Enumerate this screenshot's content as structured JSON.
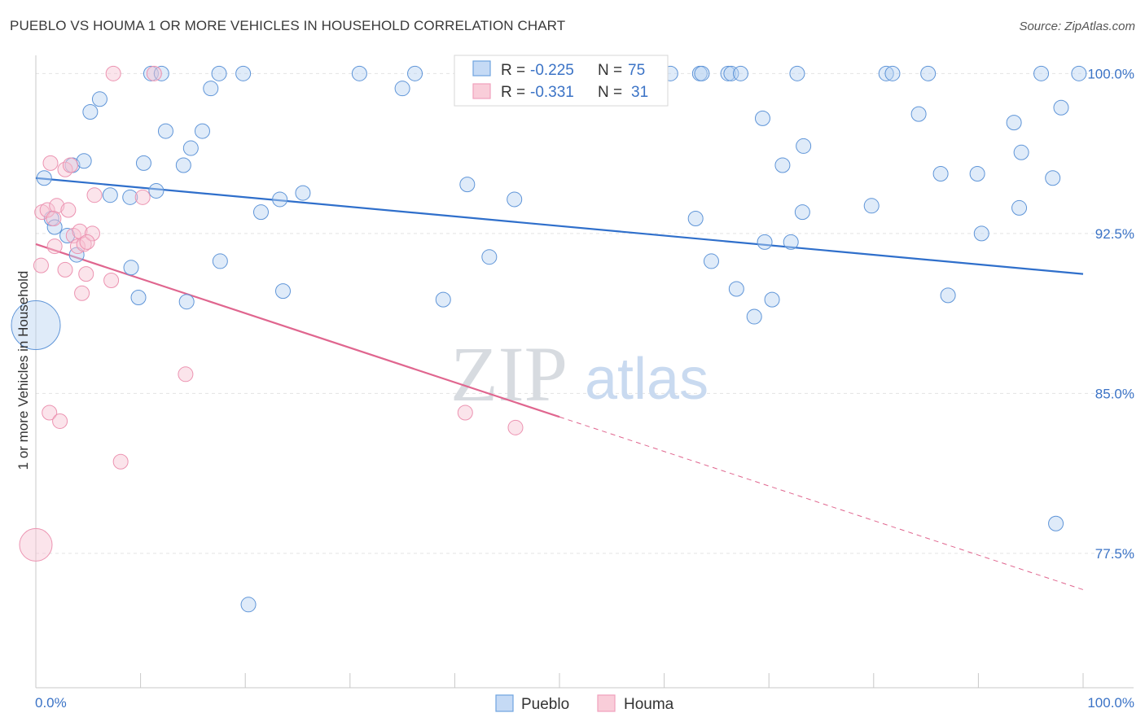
{
  "title": "PUEBLO VS HOUMA 1 OR MORE VEHICLES IN HOUSEHOLD CORRELATION CHART",
  "source": "Source: ZipAtlas.com",
  "watermark": {
    "zip": "ZIP",
    "atlas": "atlas"
  },
  "colors": {
    "pueblo": "#6fa3e0",
    "houma": "#f0a0bc",
    "pueblo_line": "#2f6fcb",
    "houma_line": "#e0668f",
    "tick": "#3b73c6"
  },
  "legend": {
    "rows": [
      {
        "r_label": "R =",
        "r_value": "-0.225",
        "n_label": "N =",
        "n_value": "75"
      },
      {
        "r_label": "R =",
        "r_value": "-0.331",
        "n_label": "N =",
        "n_value": "31"
      }
    ]
  },
  "bottom_legend": {
    "pueblo": "Pueblo",
    "houma": "Houma"
  },
  "chart_data": {
    "type": "scatter",
    "title": "PUEBLO VS HOUMA 1 OR MORE VEHICLES IN HOUSEHOLD CORRELATION CHART",
    "xlabel": "",
    "ylabel": "1 or more Vehicles in Household",
    "xlim": [
      0,
      100
    ],
    "ylim": [
      71.2,
      100.7
    ],
    "x_tick_labels": [
      "0.0%",
      "100.0%"
    ],
    "y_ticks": [
      100.0,
      92.5,
      85.0,
      77.5
    ],
    "y_tick_labels": [
      "100.0%",
      "92.5%",
      "85.0%",
      "77.5%"
    ],
    "series": [
      {
        "name": "Pueblo",
        "r": -0.225,
        "n": 75,
        "trend": {
          "x": [
            0,
            100
          ],
          "y": [
            95.1,
            90.6
          ]
        },
        "points": [
          [
            0.0,
            88.2,
            30
          ],
          [
            0.8,
            95.1,
            9
          ],
          [
            1.5,
            93.2,
            9
          ],
          [
            1.8,
            92.8,
            9
          ],
          [
            3.0,
            92.4,
            9
          ],
          [
            3.5,
            95.7,
            9
          ],
          [
            3.9,
            91.5,
            9
          ],
          [
            4.6,
            95.9,
            9
          ],
          [
            5.2,
            98.2,
            9
          ],
          [
            6.1,
            98.8,
            9
          ],
          [
            7.1,
            94.3,
            9
          ],
          [
            9.0,
            94.2,
            9
          ],
          [
            9.1,
            90.9,
            9
          ],
          [
            9.8,
            89.5,
            9
          ],
          [
            10.3,
            95.8,
            9
          ],
          [
            11.0,
            100.0,
            9
          ],
          [
            11.5,
            94.5,
            9
          ],
          [
            12.0,
            100.0,
            9
          ],
          [
            12.4,
            97.3,
            9
          ],
          [
            14.1,
            95.7,
            9
          ],
          [
            14.4,
            89.3,
            9
          ],
          [
            14.8,
            96.5,
            9
          ],
          [
            15.9,
            97.3,
            9
          ],
          [
            16.7,
            99.3,
            9
          ],
          [
            17.5,
            100.0,
            9
          ],
          [
            17.6,
            91.2,
            9
          ],
          [
            19.8,
            100.0,
            9
          ],
          [
            20.3,
            75.1,
            9
          ],
          [
            21.5,
            93.5,
            9
          ],
          [
            23.3,
            94.1,
            9
          ],
          [
            23.6,
            89.8,
            9
          ],
          [
            25.5,
            94.4,
            9
          ],
          [
            30.9,
            100.0,
            9
          ],
          [
            35.0,
            99.3,
            9
          ],
          [
            36.2,
            100.0,
            9
          ],
          [
            38.9,
            89.4,
            9
          ],
          [
            41.2,
            94.8,
            9
          ],
          [
            43.3,
            91.4,
            9
          ],
          [
            45.7,
            94.1,
            9
          ],
          [
            47.4,
            100.0,
            9
          ],
          [
            60.6,
            100.0,
            9
          ],
          [
            63.4,
            100.0,
            9
          ],
          [
            63.6,
            100.0,
            9
          ],
          [
            66.1,
            100.0,
            9
          ],
          [
            66.4,
            100.0,
            9
          ],
          [
            67.3,
            100.0,
            9
          ],
          [
            63.0,
            93.2,
            9
          ],
          [
            64.5,
            91.2,
            9
          ],
          [
            66.9,
            89.9,
            9
          ],
          [
            68.6,
            88.6,
            9
          ],
          [
            69.4,
            97.9,
            9
          ],
          [
            69.6,
            92.1,
            9
          ],
          [
            70.3,
            89.4,
            9
          ],
          [
            71.3,
            95.7,
            9
          ],
          [
            72.1,
            92.1,
            9
          ],
          [
            72.7,
            100.0,
            9
          ],
          [
            73.3,
            96.6,
            9
          ],
          [
            73.2,
            93.5,
            9
          ],
          [
            79.8,
            93.8,
            9
          ],
          [
            81.2,
            100.0,
            9
          ],
          [
            81.8,
            100.0,
            9
          ],
          [
            84.3,
            98.1,
            9
          ],
          [
            85.2,
            100.0,
            9
          ],
          [
            86.4,
            95.3,
            9
          ],
          [
            87.1,
            89.6,
            9
          ],
          [
            89.9,
            95.3,
            9
          ],
          [
            90.3,
            92.5,
            9
          ],
          [
            93.4,
            97.7,
            9
          ],
          [
            93.9,
            93.7,
            9
          ],
          [
            94.1,
            96.3,
            9
          ],
          [
            96.0,
            100.0,
            9
          ],
          [
            97.4,
            78.9,
            9
          ],
          [
            97.1,
            95.1,
            9
          ],
          [
            97.9,
            98.4,
            9
          ],
          [
            99.6,
            100.0,
            9
          ]
        ]
      },
      {
        "name": "Houma",
        "r": -0.331,
        "n": 31,
        "trend": {
          "x": [
            0,
            50
          ],
          "y": [
            92.0,
            83.9
          ]
        },
        "trend_dashed": {
          "x": [
            50,
            100
          ],
          "y": [
            83.9,
            75.8
          ]
        },
        "points": [
          [
            0.0,
            77.9,
            20
          ],
          [
            0.5,
            91.0,
            9
          ],
          [
            0.6,
            93.5,
            9
          ],
          [
            1.1,
            93.6,
            9
          ],
          [
            1.3,
            84.1,
            9
          ],
          [
            1.4,
            95.8,
            9
          ],
          [
            1.8,
            91.9,
            9
          ],
          [
            2.0,
            93.8,
            9
          ],
          [
            2.3,
            83.7,
            9
          ],
          [
            2.8,
            95.5,
            9
          ],
          [
            2.8,
            90.8,
            9
          ],
          [
            3.1,
            93.6,
            9
          ],
          [
            3.3,
            95.7,
            9
          ],
          [
            3.6,
            92.4,
            9
          ],
          [
            4.0,
            91.9,
            9
          ],
          [
            4.2,
            92.6,
            9
          ],
          [
            4.4,
            89.7,
            9
          ],
          [
            4.6,
            92.0,
            9
          ],
          [
            4.8,
            90.6,
            9
          ],
          [
            5.4,
            92.5,
            9
          ],
          [
            5.6,
            94.3,
            9
          ],
          [
            7.2,
            90.3,
            9
          ],
          [
            7.4,
            100.0,
            9
          ],
          [
            8.1,
            81.8,
            9
          ],
          [
            10.2,
            94.2,
            9
          ],
          [
            11.3,
            100.0,
            9
          ],
          [
            14.3,
            85.9,
            9
          ],
          [
            41.0,
            84.1,
            9
          ],
          [
            45.8,
            83.4,
            9
          ],
          [
            4.9,
            92.1,
            9
          ],
          [
            1.7,
            93.2,
            9
          ]
        ]
      }
    ]
  }
}
